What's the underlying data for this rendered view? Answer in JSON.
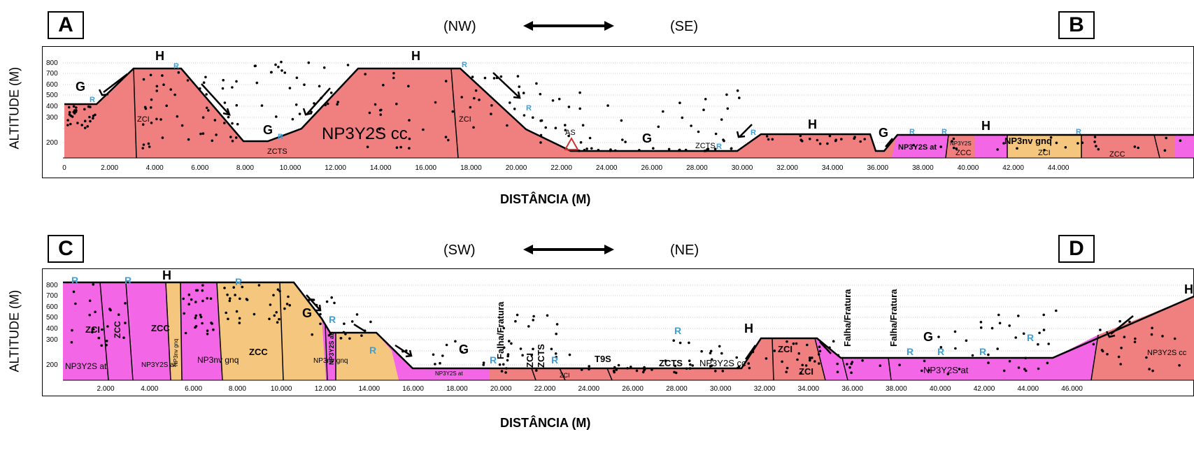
{
  "top": {
    "left_letter": "A",
    "right_letter": "B",
    "dir_left": "(NW)",
    "dir_right": "(SE)",
    "ylabel": "ALTITUDE (M)",
    "xlabel": "DISTÂNCIA (M)",
    "yticks": [
      "800",
      "700",
      "600",
      "500",
      "400",
      "300",
      "200"
    ],
    "xticks": [
      "0",
      "2.000",
      "4.000",
      "6.000",
      "8.000",
      "10.000",
      "12.000",
      "14.000",
      "16.000",
      "18.000",
      "20.000",
      "22.000",
      "24.000",
      "26.000",
      "28.000",
      "30.000",
      "32.000",
      "34.000",
      "36.000",
      "38.000",
      "40.000",
      "42.000",
      "44.000"
    ],
    "labels": {
      "g1": "G",
      "h1": "H",
      "h2": "H",
      "g2": "G",
      "g3": "G",
      "h3": "H",
      "g4": "G",
      "h4": "H",
      "main_unit": "NP3Y2S cc",
      "zci1": "ZCI",
      "zci2": "ZCI",
      "zcts1": "ZCTS",
      "zcts2": "ZCTS",
      "as": "AS",
      "np_at": "NP3Y2S at",
      "zcc1": "ZCC",
      "zcc2": "ZCC",
      "zci3": "ZCI",
      "np_gnq": "NP3nv gnq",
      "np_small": "NP3Y2S",
      "r1": "R",
      "r2": "R",
      "r3": "R",
      "r4": "R",
      "r5": "R",
      "r6": "R",
      "r7": "R",
      "r8": "R",
      "r9": "R",
      "r10": "R"
    }
  },
  "bottom": {
    "left_letter": "C",
    "right_letter": "D",
    "dir_left": "(SW)",
    "dir_right": "(NE)",
    "ylabel": "ALTITUDE (M)",
    "xlabel": "DISTÂNCIA (M)",
    "yticks": [
      "800",
      "700",
      "600",
      "500",
      "400",
      "300",
      "200"
    ],
    "xticks": [
      "2.000",
      "4.000",
      "6.000",
      "8.000",
      "10.000",
      "12.000",
      "14.000",
      "16.000",
      "18.000",
      "20.000",
      "22.000",
      "24.000",
      "26.000",
      "28.000",
      "30.000",
      "32.000",
      "34.000",
      "36.000",
      "38.000",
      "40.000",
      "42.000",
      "44.000",
      "46.000"
    ],
    "labels": {
      "h1": "H",
      "g1": "G",
      "g2": "G",
      "h2": "H",
      "g3": "G",
      "h3": "H",
      "zci1": "ZCI",
      "zcc1": "ZCC",
      "zcc2": "ZCC",
      "np_at1": "NP3Y2S at",
      "np_gnq1": "NP3nv gnq",
      "np_gnq_v": "NP3nv gnq",
      "np_at2": "NP3Y2S at",
      "np_at_v": "NP3Y2S at",
      "zcc3": "ZCC",
      "np_gnq2": "NP3nv gnq",
      "np_at3": "NP3Y2S at",
      "falha1": "Falha/Fratura",
      "zci2": "ZCI",
      "zcts1": "ZCTS",
      "zci3": "ZCI",
      "t9s": "T9S",
      "zcts2": "ZCTS",
      "np_cc1": "NP3Y2S cc",
      "zci4": "ZCI",
      "zci5": "ZCI",
      "falha2": "Falha/Fratura",
      "falha3": "Falha/Fratura",
      "np_at4": "NP3Y2S at",
      "np_cc2": "NP3Y2S cc",
      "r1": "R",
      "r2": "R",
      "r3": "R",
      "r4": "R",
      "r5": "R",
      "r6": "R",
      "r7": "R",
      "r8": "R",
      "r9": "R",
      "r10": "R",
      "r11": "R",
      "r12": "R"
    }
  },
  "colors": {
    "cc": "#f08080",
    "at": "#f366e6",
    "gnq": "#f5c77e",
    "r_label": "#3aa0d8",
    "as_symbol": "#d03030"
  }
}
